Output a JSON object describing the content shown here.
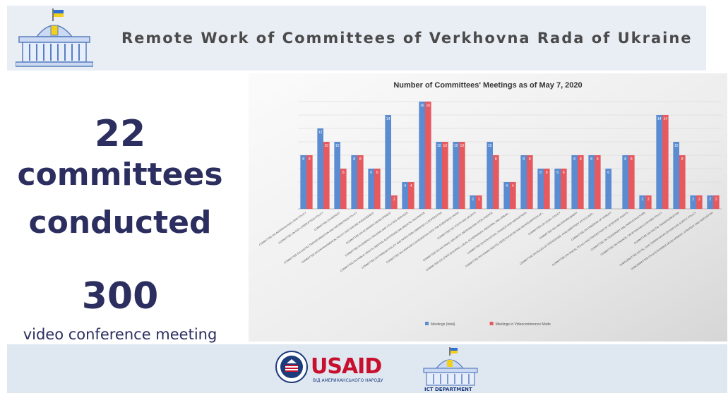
{
  "header": {
    "title": "Remote Work of Committees of Verkhovna Rada of Ukraine"
  },
  "stats": {
    "count": "22",
    "word1": "committees",
    "word2": "conducted",
    "meetings": "300",
    "meetings_label": "video conference meeting"
  },
  "footer": {
    "usaid": "USAID",
    "usaid_sub": "ВІД АМЕРИКАНСЬКОГО НАРОДУ",
    "ict": "ICT DEPARTMENT"
  },
  "colors": {
    "series1": "#5b8bd0",
    "series2": "#e5595f",
    "title_text": "#2b2e5f"
  },
  "chart_data": {
    "type": "bar",
    "title": "Number of Committees' Meetings as of May 7, 2020",
    "ylim": [
      0,
      16
    ],
    "grid": true,
    "legend": "bottom",
    "categories": [
      "COMMITTEE ON AGRARIAN AND LAND POLICY",
      "COMMITTEE ON ANTI-CORRUPTION POLICY",
      "COMMITTEE ON BUDGET",
      "COMMITTEE ON DIGITAL TRANSFORMATION AND INFORMATION POLICY",
      "COMMITTEE ON ENVIRONMENTAL POLICY AND NATURE MANAGEMENT",
      "COMMITTEE ON ECONOMIC DEVELOPMENT",
      "COMMITTEE ON ENERGY, HOUSING AND UTILITIES SERVICES",
      "COMMITTEE ON PUBLIC HEALTH, MEDICAL ASSISTANCE AND MEDICAL INSURANCE",
      "COMMITTEE ON FOREIGN POLICY AND INTER-PARLIAMENTARY COOPERATION",
      "COMMITTEE ON UKRAINE'S INTEGRATION INTO THE EUROPEAN UNION",
      "COMMITTEE ON YOUTH AND SPORTS",
      "COMMITTEE ON NATIONAL SECURITY, DEFENSE AND INTELLIGENCE",
      "COMMITTEE ON STATE BUILDING, LOCAL GOVERNANCE, REGIONAL AND URBAN...",
      "COMMITTEE ON EDUCATION, SCIENCE AND INNOVATIONS",
      "COMMITTEE ON HUMAN RIGHTS, DEOCCUPATION AND REINTEGRATION OF...",
      "COMMITTEE ON LEGAL POLICY",
      "COMMITTEE ON LAW ENFORCEMENT",
      "COMMITTEE ON RULES OF PROCEDURE, PARLIAMENTARY ETHICS AND...",
      "COMMITTEE ON FREEDOM OF SPEECH",
      "COMMITTEE ON SOCIAL POLICY AND PROTECTION OF VETERANS' RIGHTS",
      "COMMITTEE ON TRANSPORT AND INFRASTRUCTURE",
      "COMMITTEE ON FINANCE, TAXATION AND CUSTOMS POLICY",
      "COMMITTEE ON DIGITAL TRANSFORMATION",
      "SUBCOMMITTEE ON OIL, GAS TRANSPORTATION AND GAS SUPPLY POLICY",
      "SUBCOMMITTEE ON SUSTAINABLE DEVELOPMENT, STRATEGY AND INNOVATION"
    ],
    "series": [
      {
        "name": "Meetings (total)",
        "values": [
          8,
          12,
          10,
          8,
          6,
          14,
          4,
          16,
          10,
          10,
          2,
          10,
          4,
          8,
          6,
          6,
          8,
          8,
          6,
          8,
          2,
          14,
          10,
          2,
          2
        ]
      },
      {
        "name": "Meetings in Videoconference Mode",
        "values": [
          8,
          10,
          6,
          8,
          6,
          2,
          4,
          16,
          10,
          10,
          2,
          8,
          4,
          8,
          6,
          6,
          8,
          8,
          0,
          8,
          2,
          14,
          8,
          2,
          2
        ]
      }
    ]
  }
}
